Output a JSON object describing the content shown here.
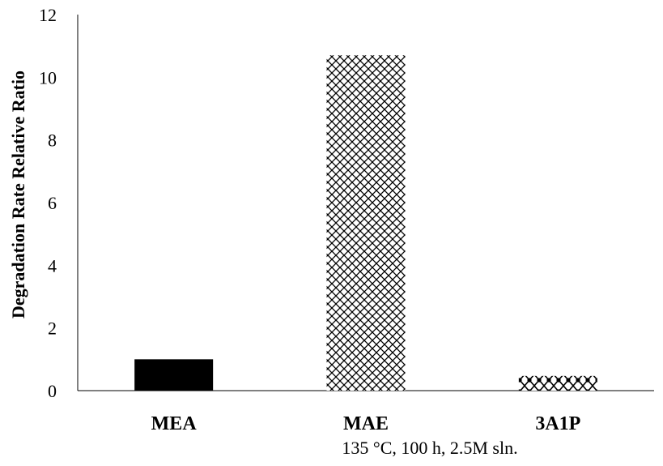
{
  "chart_data": {
    "type": "bar",
    "categories": [
      "MEA",
      "MAE",
      "3A1P"
    ],
    "values": [
      1.0,
      10.7,
      0.47
    ],
    "title": "",
    "xlabel": "135 °C, 100 h, 2.5M sln.",
    "ylabel": "Degradation Rate Relative Ratio",
    "ylim": [
      0,
      12
    ],
    "yticks": [
      0,
      2,
      4,
      6,
      8,
      10,
      12
    ],
    "grid": false,
    "legend": "none",
    "bar_fills": [
      "solid-black",
      "crosshatch",
      "dotted-diamond"
    ]
  }
}
